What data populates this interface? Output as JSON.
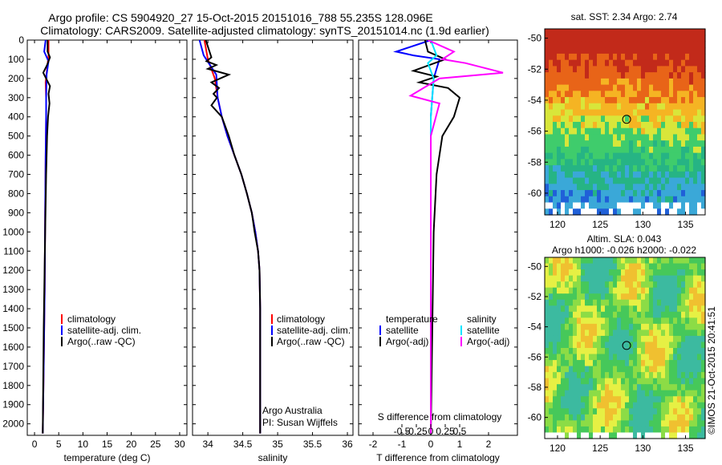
{
  "header": {
    "line1": "Argo profile: CS 5904920_27 15-Oct-2015 20151016_788 55.235S 128.096E",
    "line2": "Climatology: CARS2009. Satellite-adjusted climatology: synTS_20151014.nc (1.9d earlier)"
  },
  "colors": {
    "climatology": "#ff0000",
    "satellite": "#0000ff",
    "argo": "#000000",
    "salinity_satellite": "#00e5ff",
    "salinity_argo": "#ff00ff"
  },
  "depth_axis": {
    "ticks": [
      0,
      100,
      200,
      300,
      400,
      500,
      600,
      700,
      800,
      900,
      1000,
      1100,
      1200,
      1300,
      1400,
      1500,
      1600,
      1700,
      1800,
      1900,
      2000
    ],
    "labels": [
      "0",
      "100",
      "200",
      "300",
      "400",
      "500",
      "600",
      "700",
      "800",
      "900",
      "1000",
      "1100",
      "1200",
      "1300",
      "1400",
      "1500",
      "1600",
      "1700",
      "1800",
      "1900",
      "2000"
    ],
    "ylim": [
      0,
      2060
    ]
  },
  "panels": {
    "temperature": {
      "xlabel": "temperature (deg C)",
      "xlim": [
        -1.5,
        31.5
      ],
      "xticks": [
        0,
        5,
        10,
        15,
        20,
        25,
        30
      ],
      "xticklabels": [
        "0",
        "5",
        "10",
        "15",
        "20",
        "25",
        "30"
      ],
      "legend": [
        "climatology",
        "satellite-adj. clim.",
        "Argo(..raw -QC)"
      ]
    },
    "salinity": {
      "xlabel": "salinity",
      "xlim": [
        33.78,
        36.08
      ],
      "xticks": [
        34,
        34.5,
        35,
        35.5,
        36
      ],
      "xticklabels": [
        "34",
        "34.5",
        "35",
        "35.5",
        "36"
      ],
      "legend": [
        "climatology",
        "satellite-adj. clim.",
        "Argo(..raw -QC)"
      ],
      "credit1": "Argo Australia",
      "credit2": "PI: Susan Wijffels"
    },
    "difference": {
      "xlabel": "T difference from climatology",
      "top_label": "S difference from climatology",
      "xlim": [
        -2.5,
        3.0
      ],
      "xticks": [
        -2,
        -1,
        0,
        1,
        2
      ],
      "xticklabels": [
        "-2",
        "-1",
        "0",
        "1",
        "2"
      ],
      "sticks": [
        -1,
        -0.5,
        0,
        0.5,
        1
      ],
      "sticklabels": [
        "-0.5",
        "-0.25",
        "0",
        "0.25",
        "0.5"
      ],
      "legend_t_head": "temperature",
      "legend_s_head": "salinity",
      "legend_t": [
        "satellite",
        "Argo(-adj)"
      ],
      "legend_s": [
        "satellite",
        "Argo(-adj)"
      ]
    }
  },
  "maps": {
    "sst": {
      "title": "sat. SST: 2.34  Argo: 2.74",
      "lon_ticks": [
        120,
        125,
        130,
        135
      ],
      "lat_ticks": [
        -50,
        -52,
        -54,
        -56,
        -58,
        -60
      ],
      "lon_labels": [
        "120",
        "125",
        "130",
        "135"
      ],
      "lat_labels": [
        "-50",
        "-52",
        "-54",
        "-56",
        "-58",
        "-60"
      ],
      "marker": {
        "lon": 128.096,
        "lat": -55.235
      }
    },
    "sla": {
      "title1": "Altim. SLA: 0.043",
      "title2": "Argo h1000: -0.026  h2000: -0.022",
      "lon_ticks": [
        120,
        125,
        130,
        135
      ],
      "lat_ticks": [
        -50,
        -52,
        -54,
        -56,
        -58,
        -60
      ],
      "lon_labels": [
        "120",
        "125",
        "130",
        "135"
      ],
      "lat_labels": [
        "-50",
        "-52",
        "-54",
        "-56",
        "-58",
        "-60"
      ],
      "marker": {
        "lon": 128.096,
        "lat": -55.235
      }
    },
    "lon_range": [
      118.5,
      137.3
    ],
    "lat_range": [
      -61.4,
      -49.4
    ]
  },
  "footer": "©IMOS 21-Oct-2015 20:41:51",
  "chart_data": [
    {
      "type": "line",
      "title": "",
      "xlabel": "temperature (deg C)",
      "ylabel": "",
      "xlim": [
        -1.5,
        31.5
      ],
      "ylim": [
        0,
        2060
      ],
      "series": [
        {
          "name": "climatology",
          "x": [
            2.9,
            2.9,
            2.6,
            2.3,
            2.4,
            2.4,
            2.3,
            2.2,
            2.1,
            1.9,
            1.7
          ],
          "y": [
            0,
            80,
            150,
            220,
            300,
            400,
            600,
            900,
            1300,
            1700,
            2050
          ]
        },
        {
          "name": "satellite-adj. clim.",
          "x": [
            2.3,
            2.0,
            2.9,
            2.5,
            2.4,
            2.4,
            2.3,
            2.2,
            2.1,
            1.9,
            1.7
          ],
          "y": [
            0,
            60,
            110,
            180,
            300,
            400,
            600,
            900,
            1300,
            1700,
            2050
          ]
        },
        {
          "name": "Argo(..raw -QC)",
          "x": [
            2.7,
            2.7,
            3.2,
            2.6,
            1.8,
            2.6,
            3.2,
            2.9,
            3.1,
            2.8,
            2.6,
            2.4,
            2.2,
            1.9,
            1.7
          ],
          "y": [
            0,
            60,
            90,
            130,
            170,
            210,
            240,
            280,
            330,
            400,
            500,
            700,
            1000,
            1500,
            2050
          ]
        }
      ]
    },
    {
      "type": "line",
      "title": "",
      "xlabel": "salinity",
      "ylabel": "",
      "xlim": [
        33.78,
        36.08
      ],
      "ylim": [
        0,
        2060
      ],
      "series": [
        {
          "name": "climatology",
          "x": [
            33.95,
            34.0,
            34.1,
            34.14,
            34.2,
            34.28,
            34.38,
            34.48,
            34.56,
            34.63,
            34.68,
            34.72,
            34.74,
            34.75,
            34.75
          ],
          "y": [
            0,
            100,
            200,
            300,
            400,
            500,
            600,
            700,
            800,
            900,
            1000,
            1100,
            1200,
            1400,
            2050
          ]
        },
        {
          "name": "satellite-adj. clim.",
          "x": [
            33.88,
            33.94,
            34.12,
            34.14,
            34.2,
            34.28,
            34.38,
            34.48,
            34.56,
            34.63,
            34.68,
            34.72,
            34.74,
            34.75,
            34.75
          ],
          "y": [
            0,
            80,
            180,
            300,
            400,
            500,
            600,
            700,
            800,
            900,
            1000,
            1100,
            1200,
            1400,
            2050
          ]
        },
        {
          "name": "Argo(..raw -QC)",
          "x": [
            33.97,
            34.05,
            33.98,
            34.12,
            34.0,
            34.3,
            34.05,
            34.16,
            34.08,
            34.13,
            34.05,
            34.2,
            34.3,
            34.38,
            34.48,
            34.56,
            34.63,
            34.67,
            34.72,
            34.74,
            34.75,
            34.75
          ],
          "y": [
            0,
            90,
            110,
            130,
            150,
            180,
            220,
            250,
            280,
            300,
            340,
            400,
            500,
            600,
            700,
            800,
            900,
            1000,
            1100,
            1200,
            1400,
            2050
          ]
        }
      ]
    },
    {
      "type": "line",
      "title": "",
      "xlabel": "T difference from climatology",
      "ylabel": "",
      "xlim": [
        -2.5,
        3.0
      ],
      "ylim": [
        0,
        2060
      ],
      "series": [
        {
          "name": "satellite",
          "x": [
            0.0,
            -1.2,
            -0.6,
            0.3,
            0.1,
            0.0,
            0.0,
            0.0,
            0.0
          ],
          "y": [
            0,
            60,
            80,
            100,
            200,
            400,
            700,
            1200,
            2050
          ]
        },
        {
          "name": "Argo(-adj)",
          "x": [
            -0.2,
            -0.1,
            0.5,
            -0.6,
            0.2,
            -0.4,
            0.6,
            1.0,
            0.8,
            0.4,
            0.2,
            0.1,
            0.0
          ],
          "y": [
            0,
            60,
            100,
            160,
            190,
            220,
            250,
            300,
            400,
            500,
            700,
            1000,
            2050
          ]
        },
        {
          "name": "satellite",
          "x": [
            0.0,
            0.2,
            -0.1,
            0.1,
            0.0,
            0.0,
            0.0
          ],
          "y": [
            0,
            80,
            120,
            200,
            400,
            900,
            1340
          ]
        },
        {
          "name": "Argo(-adj)",
          "x": [
            -0.1,
            0.8,
            0.4,
            1.2,
            2.5,
            0.3,
            -0.7,
            0.3,
            0.0,
            0.0,
            0.0
          ],
          "y": [
            0,
            60,
            100,
            120,
            170,
            200,
            290,
            330,
            500,
            1000,
            2050
          ]
        }
      ]
    }
  ]
}
